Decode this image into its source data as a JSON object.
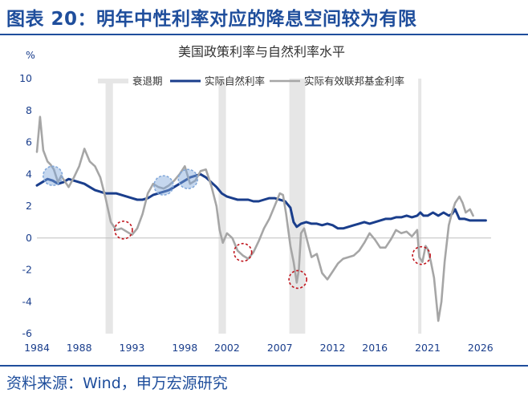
{
  "figure": {
    "title": "图表 20：明年中性利率对应的降息空间较为有限",
    "source": "资料来源：Wind，申万宏源研究"
  },
  "colors": {
    "title": "#1f4e9c",
    "natural_rate": "#1a3e8c",
    "effective_rate": "#a6a6a6",
    "recession": "#e6e6e6",
    "axis_text": "#1a3e8c",
    "blue_marker": "#7fa6d9",
    "red_marker": "#c0141c"
  },
  "chart_data": {
    "type": "line",
    "title": "美国政策利率与自然利率水平",
    "ylabel": "%",
    "xlabel": "",
    "xlim": [
      1984,
      2027
    ],
    "ylim": [
      -6,
      10
    ],
    "yticks": [
      -6,
      -4,
      -2,
      0,
      2,
      4,
      6,
      8,
      10
    ],
    "xticks": [
      1984,
      1988,
      1993,
      1998,
      2002,
      2007,
      2012,
      2016,
      2021,
      2026
    ],
    "legend": {
      "placement": "top",
      "entries": [
        {
          "key": "recession",
          "label": "衰退期"
        },
        {
          "key": "natural",
          "label": "实际自然利率"
        },
        {
          "key": "effective",
          "label": "实际有效联邦基金利率"
        }
      ]
    },
    "recessions": [
      [
        1990.5,
        1991.2
      ],
      [
        2001.2,
        2001.9
      ],
      [
        2007.9,
        2009.4
      ],
      [
        2020.1,
        2020.4
      ]
    ],
    "series": [
      {
        "name": "实际自然利率",
        "key": "natural",
        "x": [
          1984,
          1984.5,
          1985,
          1985.5,
          1986,
          1986.5,
          1987,
          1987.5,
          1988,
          1988.5,
          1989,
          1989.5,
          1990,
          1990.5,
          1991,
          1991.5,
          1992,
          1992.5,
          1993,
          1993.5,
          1994,
          1994.5,
          1995,
          1995.5,
          1996,
          1996.5,
          1997,
          1997.5,
          1998,
          1998.5,
          1999,
          1999.5,
          2000,
          2000.5,
          2001,
          2001.5,
          2002,
          2002.5,
          2003,
          2003.5,
          2004,
          2004.5,
          2005,
          2005.5,
          2006,
          2006.5,
          2007,
          2007.5,
          2008,
          2008.3,
          2008.6,
          2009,
          2009.5,
          2010,
          2010.5,
          2011,
          2011.5,
          2012,
          2012.5,
          2013,
          2013.5,
          2014,
          2014.5,
          2015,
          2015.5,
          2016,
          2016.5,
          2017,
          2017.5,
          2018,
          2018.5,
          2019,
          2019.5,
          2020,
          2020.3,
          2020.6,
          2021,
          2021.5,
          2022,
          2022.5,
          2023,
          2023.3,
          2023.6,
          2024,
          2024.5,
          2025,
          2025.5,
          2026,
          2026.5
        ],
        "values": [
          3.3,
          3.5,
          3.7,
          3.6,
          3.4,
          3.5,
          3.7,
          3.6,
          3.5,
          3.4,
          3.2,
          3.0,
          2.9,
          2.8,
          2.8,
          2.8,
          2.7,
          2.6,
          2.5,
          2.4,
          2.4,
          2.5,
          2.7,
          2.8,
          2.9,
          3.0,
          3.2,
          3.4,
          3.6,
          3.8,
          3.9,
          4.0,
          3.8,
          3.5,
          3.2,
          2.8,
          2.6,
          2.5,
          2.4,
          2.4,
          2.4,
          2.3,
          2.3,
          2.4,
          2.5,
          2.5,
          2.4,
          2.3,
          1.9,
          1.0,
          0.7,
          0.9,
          1.0,
          0.9,
          0.9,
          0.8,
          0.9,
          0.8,
          0.6,
          0.6,
          0.7,
          0.8,
          0.9,
          1.0,
          0.9,
          1.0,
          1.1,
          1.2,
          1.2,
          1.3,
          1.3,
          1.4,
          1.3,
          1.4,
          1.6,
          1.4,
          1.4,
          1.6,
          1.4,
          1.6,
          1.4,
          1.5,
          1.8,
          1.2,
          1.2,
          1.1,
          1.1,
          1.1,
          1.1
        ]
      },
      {
        "name": "实际有效联邦基金利率",
        "key": "effective",
        "x": [
          1984,
          1984.3,
          1984.6,
          1985,
          1985.3,
          1985.6,
          1986,
          1986.3,
          1986.6,
          1987,
          1987.5,
          1988,
          1988.5,
          1989,
          1989.5,
          1990,
          1990.5,
          1991,
          1991.5,
          1992,
          1992.5,
          1993,
          1993.5,
          1994,
          1994.5,
          1995,
          1995.5,
          1996,
          1996.5,
          1997,
          1997.5,
          1998,
          1998.5,
          1999,
          1999.5,
          2000,
          2000.5,
          2001,
          2001.3,
          2001.6,
          2002,
          2002.5,
          2003,
          2003.5,
          2004,
          2004.5,
          2005,
          2005.5,
          2006,
          2006.5,
          2007,
          2007.3,
          2007.6,
          2008,
          2008.3,
          2008.6,
          2008.8,
          2009,
          2009.3,
          2009.6,
          2010,
          2010.5,
          2011,
          2011.5,
          2012,
          2012.5,
          2013,
          2013.5,
          2014,
          2014.5,
          2015,
          2015.5,
          2016,
          2016.5,
          2017,
          2017.5,
          2018,
          2018.5,
          2019,
          2019.5,
          2020,
          2020.2,
          2020.5,
          2020.8,
          2021,
          2021.3,
          2021.6,
          2022,
          2022.3,
          2022.6,
          2023,
          2023.3,
          2023.6,
          2024,
          2024.3,
          2024.6,
          2025,
          2025.3
        ],
        "values": [
          5.4,
          7.6,
          5.5,
          4.8,
          4.6,
          4.3,
          3.5,
          3.9,
          3.6,
          3.2,
          3.8,
          4.5,
          5.6,
          4.8,
          4.5,
          3.8,
          2.5,
          1.0,
          0.5,
          0.6,
          0.4,
          0.2,
          0.6,
          1.5,
          2.8,
          3.4,
          3.2,
          3.1,
          3.3,
          3.6,
          4.0,
          4.5,
          3.4,
          3.6,
          4.2,
          4.3,
          3.3,
          2.0,
          0.5,
          -0.3,
          0.3,
          0.0,
          -0.8,
          -1.1,
          -1.3,
          -0.9,
          -0.2,
          0.6,
          1.2,
          2.0,
          2.8,
          2.7,
          1.5,
          -0.5,
          -1.5,
          -2.8,
          -2.0,
          0.3,
          0.6,
          -0.2,
          -1.2,
          -1.0,
          -2.2,
          -2.6,
          -2.1,
          -1.6,
          -1.3,
          -1.2,
          -1.1,
          -0.8,
          -0.3,
          0.3,
          -0.1,
          -0.6,
          -0.6,
          -0.1,
          0.5,
          0.3,
          0.4,
          0.1,
          0.5,
          -1.2,
          -1.5,
          -0.5,
          -0.7,
          -1.5,
          -2.5,
          -5.2,
          -4.0,
          -1.5,
          0.8,
          1.6,
          2.2,
          2.6,
          2.2,
          1.6,
          1.8,
          1.4
        ]
      }
    ],
    "markers": [
      {
        "kind": "blue",
        "x": 1985.5,
        "y": 3.9
      },
      {
        "kind": "blue",
        "x": 1996.0,
        "y": 3.3
      },
      {
        "kind": "blue",
        "x": 1998.3,
        "y": 3.7
      },
      {
        "kind": "red",
        "x": 1992.2,
        "y": 0.5
      },
      {
        "kind": "red",
        "x": 2003.5,
        "y": -0.9
      },
      {
        "kind": "red",
        "x": 2008.7,
        "y": -2.6
      },
      {
        "kind": "red",
        "x": 2020.4,
        "y": -1.1
      }
    ]
  }
}
